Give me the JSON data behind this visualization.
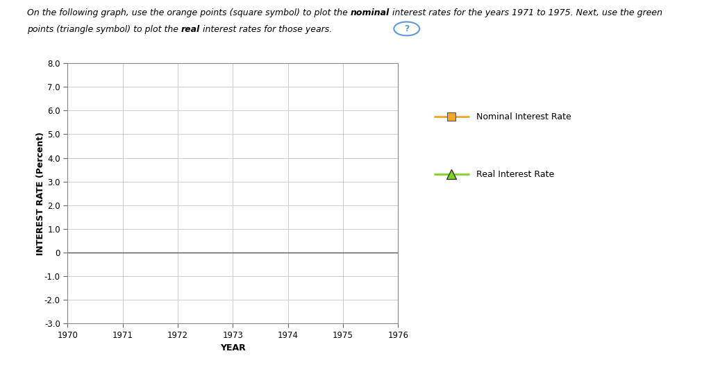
{
  "xlabel": "YEAR",
  "ylabel": "INTEREST RATE (Percent)",
  "xlim": [
    1970,
    1976
  ],
  "ylim": [
    -3.0,
    8.0
  ],
  "xticks": [
    1970,
    1971,
    1972,
    1973,
    1974,
    1975,
    1976
  ],
  "yticks": [
    -3.0,
    -2.0,
    -1.0,
    0,
    1.0,
    2.0,
    3.0,
    4.0,
    5.0,
    6.0,
    7.0,
    8.0
  ],
  "ytick_labels": [
    "-3.0",
    "-2.0",
    "-1.0",
    "0",
    "1.0",
    "2.0",
    "3.0",
    "4.0",
    "5.0",
    "6.0",
    "7.0",
    "8.0"
  ],
  "legend_nominal_label": "Nominal Interest Rate",
  "legend_real_label": "Real Interest Rate",
  "nominal_color": "#F5A623",
  "real_color": "#7ED321",
  "background_color": "#FFFFFF",
  "plot_bg_color": "#FFFFFF",
  "grid_color": "#CCCCCC",
  "line1_parts": [
    [
      "On the following graph, use the orange points (square symbol) to plot the ",
      false
    ],
    [
      "nominal",
      true
    ],
    [
      " interest rates for the years 1971 to 1975. Next, use the green",
      false
    ]
  ],
  "line2_parts": [
    [
      "points (triangle symbol) to plot the ",
      false
    ],
    [
      "real",
      true
    ],
    [
      " interest rates for those years.",
      false
    ]
  ]
}
